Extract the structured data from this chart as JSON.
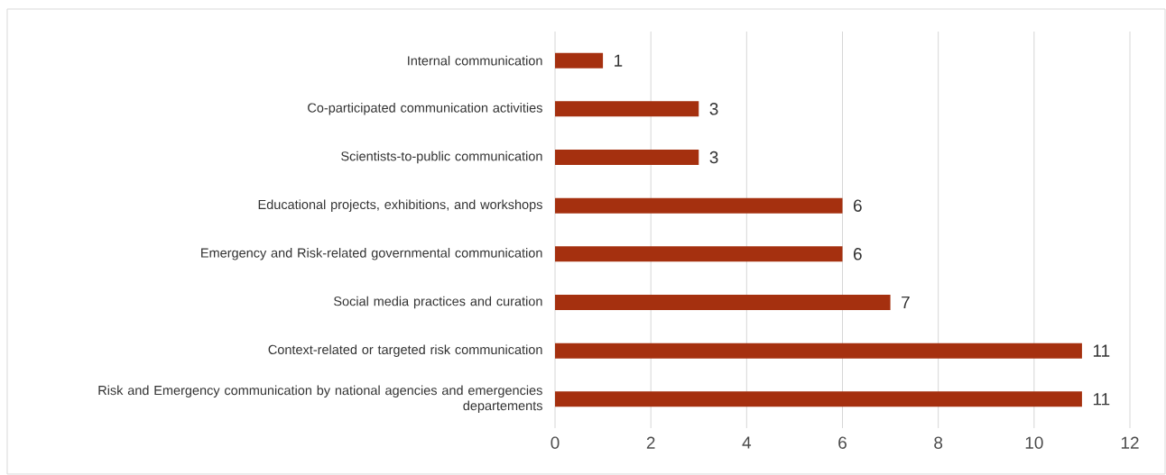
{
  "chart_data": {
    "type": "bar",
    "orientation": "horizontal",
    "categories": [
      "Internal communication",
      "Co-participated communication activities",
      "Scientists-to-public communication",
      "Educational projects, exhibitions, and workshops",
      "Emergency and Risk-related governmental communication",
      "Social media practices and curation",
      "Context-related or targeted risk communication",
      "Risk and Emergency communication by national agencies and emergencies departements"
    ],
    "values": [
      1,
      3,
      3,
      6,
      6,
      7,
      11,
      11
    ],
    "color": "#a5300f",
    "xlim": [
      0,
      12
    ],
    "xticks": [
      0,
      2,
      4,
      6,
      8,
      10,
      12
    ],
    "grid": "x",
    "data_labels": true
  }
}
